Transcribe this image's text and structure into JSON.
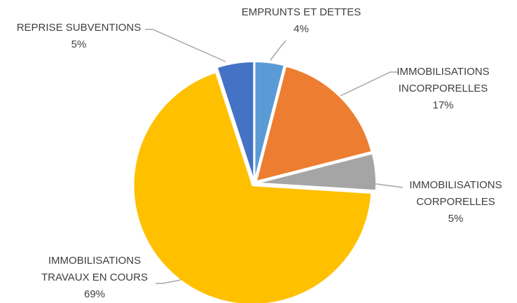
{
  "chart_data": {
    "type": "pie",
    "categories": [
      "EMPRUNTS ET DETTES",
      "IMMOBILISATIONS INCORPORELLES",
      "IMMOBILISATIONS CORPORELLES",
      "IMMOBILISATIONS TRAVAUX EN COURS",
      "REPRISE SUBVENTIONS"
    ],
    "values": [
      4,
      17,
      5,
      69,
      5
    ],
    "value_labels": [
      "4%",
      "17%",
      "5%",
      "69%",
      "5%"
    ],
    "colors": [
      "#5b9bd5",
      "#ed7d31",
      "#a5a5a5",
      "#ffc000",
      "#4472c4"
    ]
  }
}
